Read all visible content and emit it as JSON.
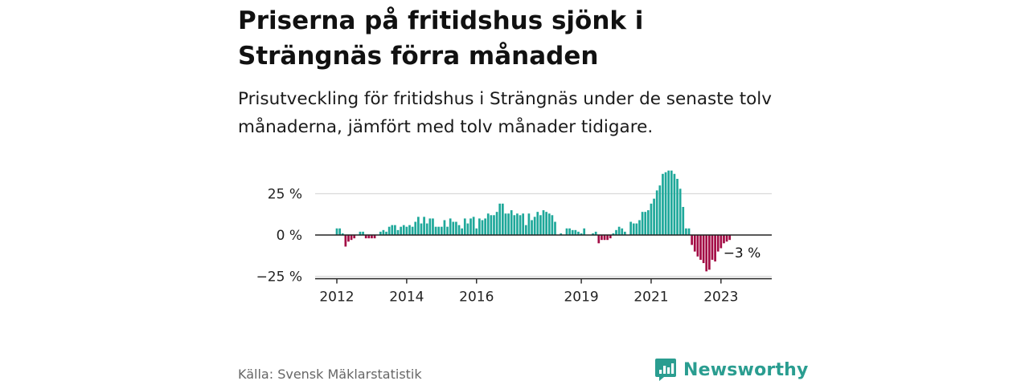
{
  "title": "Priserna på fritidshus sjönk i Strängnäs förra månaden",
  "subtitle": "Prisutveckling för fritidshus i Strängnäs under de senaste tolv månaderna, jämfört med tolv månader tidigare.",
  "source": "Källa: Svensk Mäklarstatistik",
  "brand": {
    "name": "Newsworthy",
    "icon": "newsworthy-logo-icon"
  },
  "colors": {
    "positive": "#1fa89a",
    "negative": "#a30c45",
    "axis": "#222222",
    "grid": "#d9d9d9"
  },
  "chart_data": {
    "type": "bar",
    "x_unit": "month",
    "ylim": [
      -25,
      40
    ],
    "yticks": [
      {
        "value": 25,
        "label": "25 %"
      },
      {
        "value": 0,
        "label": "0 %"
      },
      {
        "value": -25,
        "label": "−25 %"
      }
    ],
    "xticks": [
      "2012",
      "2014",
      "2016",
      "2019",
      "2021",
      "2023"
    ],
    "annotation": {
      "label": "−3 %",
      "value": -3
    },
    "grid": true,
    "series": [
      {
        "values": [
          {
            "x": "2012-01",
            "y": 4
          },
          {
            "x": "2012-02",
            "y": 4
          },
          {
            "x": "2012-03",
            "y": 1
          },
          {
            "x": "2012-04",
            "y": -7
          },
          {
            "x": "2012-05",
            "y": -4
          },
          {
            "x": "2012-06",
            "y": -3
          },
          {
            "x": "2012-07",
            "y": -2
          },
          {
            "x": "2012-08",
            "y": 0
          },
          {
            "x": "2012-09",
            "y": 2
          },
          {
            "x": "2012-10",
            "y": 2
          },
          {
            "x": "2012-11",
            "y": -2
          },
          {
            "x": "2012-12",
            "y": -2
          },
          {
            "x": "2013-01",
            "y": -2
          },
          {
            "x": "2013-02",
            "y": -2
          },
          {
            "x": "2013-03",
            "y": 0
          },
          {
            "x": "2013-04",
            "y": 2
          },
          {
            "x": "2013-05",
            "y": 3
          },
          {
            "x": "2013-06",
            "y": 2
          },
          {
            "x": "2013-07",
            "y": 5
          },
          {
            "x": "2013-08",
            "y": 6
          },
          {
            "x": "2013-09",
            "y": 6
          },
          {
            "x": "2013-10",
            "y": 3
          },
          {
            "x": "2013-11",
            "y": 5
          },
          {
            "x": "2013-12",
            "y": 6
          },
          {
            "x": "2014-01",
            "y": 5
          },
          {
            "x": "2014-02",
            "y": 6
          },
          {
            "x": "2014-03",
            "y": 5
          },
          {
            "x": "2014-04",
            "y": 8
          },
          {
            "x": "2014-05",
            "y": 11
          },
          {
            "x": "2014-06",
            "y": 7
          },
          {
            "x": "2014-07",
            "y": 11
          },
          {
            "x": "2014-08",
            "y": 7
          },
          {
            "x": "2014-09",
            "y": 10
          },
          {
            "x": "2014-10",
            "y": 10
          },
          {
            "x": "2014-11",
            "y": 5
          },
          {
            "x": "2014-12",
            "y": 5
          },
          {
            "x": "2015-01",
            "y": 5
          },
          {
            "x": "2015-02",
            "y": 9
          },
          {
            "x": "2015-03",
            "y": 5
          },
          {
            "x": "2015-04",
            "y": 10
          },
          {
            "x": "2015-05",
            "y": 8
          },
          {
            "x": "2015-06",
            "y": 8
          },
          {
            "x": "2015-07",
            "y": 6
          },
          {
            "x": "2015-08",
            "y": 4
          },
          {
            "x": "2015-09",
            "y": 10
          },
          {
            "x": "2015-10",
            "y": 7
          },
          {
            "x": "2015-11",
            "y": 10
          },
          {
            "x": "2015-12",
            "y": 11
          },
          {
            "x": "2016-01",
            "y": 4
          },
          {
            "x": "2016-02",
            "y": 10
          },
          {
            "x": "2016-03",
            "y": 9
          },
          {
            "x": "2016-04",
            "y": 10
          },
          {
            "x": "2016-05",
            "y": 13
          },
          {
            "x": "2016-06",
            "y": 12
          },
          {
            "x": "2016-07",
            "y": 12
          },
          {
            "x": "2016-08",
            "y": 14
          },
          {
            "x": "2016-09",
            "y": 19
          },
          {
            "x": "2016-10",
            "y": 19
          },
          {
            "x": "2016-11",
            "y": 13
          },
          {
            "x": "2016-12",
            "y": 13
          },
          {
            "x": "2017-01",
            "y": 15
          },
          {
            "x": "2017-02",
            "y": 12
          },
          {
            "x": "2017-03",
            "y": 13
          },
          {
            "x": "2017-04",
            "y": 12
          },
          {
            "x": "2017-05",
            "y": 13
          },
          {
            "x": "2017-06",
            "y": 6
          },
          {
            "x": "2017-07",
            "y": 13
          },
          {
            "x": "2017-08",
            "y": 9
          },
          {
            "x": "2017-09",
            "y": 11
          },
          {
            "x": "2017-10",
            "y": 14
          },
          {
            "x": "2017-11",
            "y": 12
          },
          {
            "x": "2017-12",
            "y": 15
          },
          {
            "x": "2018-01",
            "y": 14
          },
          {
            "x": "2018-02",
            "y": 13
          },
          {
            "x": "2018-03",
            "y": 12
          },
          {
            "x": "2018-04",
            "y": 8
          },
          {
            "x": "2018-05",
            "y": 0
          },
          {
            "x": "2018-06",
            "y": 1
          },
          {
            "x": "2018-07",
            "y": 0
          },
          {
            "x": "2018-08",
            "y": 4
          },
          {
            "x": "2018-09",
            "y": 4
          },
          {
            "x": "2018-10",
            "y": 3
          },
          {
            "x": "2018-11",
            "y": 3
          },
          {
            "x": "2018-12",
            "y": 2
          },
          {
            "x": "2019-01",
            "y": 1
          },
          {
            "x": "2019-02",
            "y": 4
          },
          {
            "x": "2019-03",
            "y": 0
          },
          {
            "x": "2019-04",
            "y": 0
          },
          {
            "x": "2019-05",
            "y": 1
          },
          {
            "x": "2019-06",
            "y": 2
          },
          {
            "x": "2019-07",
            "y": -5
          },
          {
            "x": "2019-08",
            "y": -3
          },
          {
            "x": "2019-09",
            "y": -3
          },
          {
            "x": "2019-10",
            "y": -3
          },
          {
            "x": "2019-11",
            "y": -2
          },
          {
            "x": "2019-12",
            "y": 1
          },
          {
            "x": "2020-01",
            "y": 3
          },
          {
            "x": "2020-02",
            "y": 5
          },
          {
            "x": "2020-03",
            "y": 4
          },
          {
            "x": "2020-04",
            "y": 2
          },
          {
            "x": "2020-05",
            "y": 0
          },
          {
            "x": "2020-06",
            "y": 8
          },
          {
            "x": "2020-07",
            "y": 7
          },
          {
            "x": "2020-08",
            "y": 7
          },
          {
            "x": "2020-09",
            "y": 9
          },
          {
            "x": "2020-10",
            "y": 14
          },
          {
            "x": "2020-11",
            "y": 14
          },
          {
            "x": "2020-12",
            "y": 15
          },
          {
            "x": "2021-01",
            "y": 19
          },
          {
            "x": "2021-02",
            "y": 22
          },
          {
            "x": "2021-03",
            "y": 27
          },
          {
            "x": "2021-04",
            "y": 30
          },
          {
            "x": "2021-05",
            "y": 37
          },
          {
            "x": "2021-06",
            "y": 38
          },
          {
            "x": "2021-07",
            "y": 39
          },
          {
            "x": "2021-08",
            "y": 39
          },
          {
            "x": "2021-09",
            "y": 37
          },
          {
            "x": "2021-10",
            "y": 34
          },
          {
            "x": "2021-11",
            "y": 28
          },
          {
            "x": "2021-12",
            "y": 17
          },
          {
            "x": "2022-01",
            "y": 4
          },
          {
            "x": "2022-02",
            "y": 4
          },
          {
            "x": "2022-03",
            "y": -6
          },
          {
            "x": "2022-04",
            "y": -10
          },
          {
            "x": "2022-05",
            "y": -13
          },
          {
            "x": "2022-06",
            "y": -15
          },
          {
            "x": "2022-07",
            "y": -17
          },
          {
            "x": "2022-08",
            "y": -22
          },
          {
            "x": "2022-09",
            "y": -21
          },
          {
            "x": "2022-10",
            "y": -15
          },
          {
            "x": "2022-11",
            "y": -16
          },
          {
            "x": "2022-12",
            "y": -10
          },
          {
            "x": "2023-01",
            "y": -8
          },
          {
            "x": "2023-02",
            "y": -5
          },
          {
            "x": "2023-03",
            "y": -4
          },
          {
            "x": "2023-04",
            "y": -3
          }
        ]
      }
    ]
  }
}
